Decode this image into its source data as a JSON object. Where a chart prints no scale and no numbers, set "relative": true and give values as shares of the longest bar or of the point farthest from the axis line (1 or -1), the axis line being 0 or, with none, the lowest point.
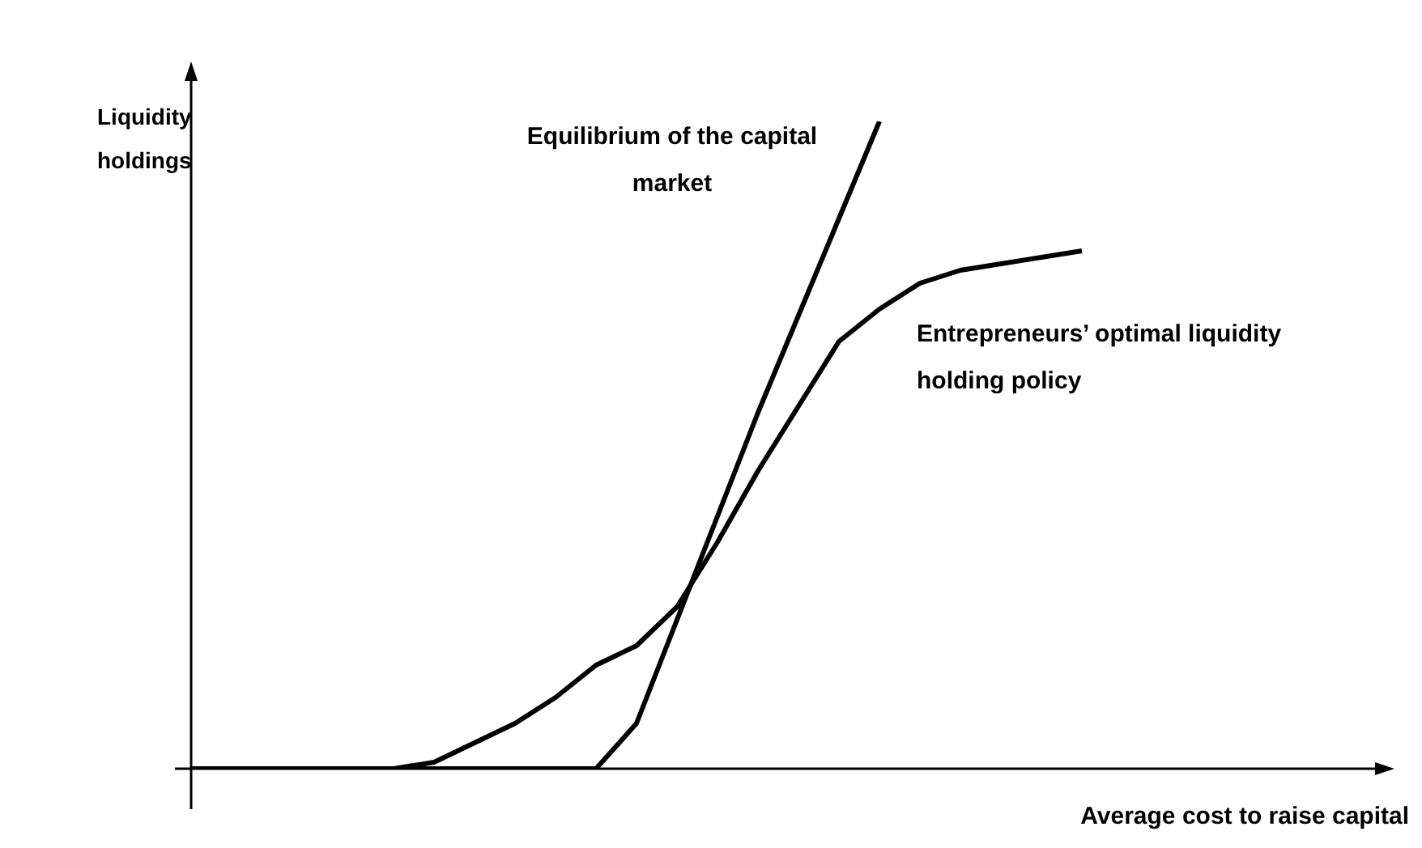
{
  "chart_data": {
    "type": "line",
    "relative": true,
    "xlabel": "Average cost to raise capital",
    "ylabel": "Liquidity holdings",
    "categories": [
      null,
      null,
      null,
      null,
      null,
      null,
      null,
      null,
      null,
      null,
      null,
      null,
      null,
      null,
      null,
      null,
      null,
      null,
      null,
      null,
      null,
      null,
      null,
      null,
      null,
      null,
      null,
      null,
      null,
      null
    ],
    "series": [
      {
        "name": "Equilibrium of the capital market",
        "color": "#000000",
        "values": [
          0,
          0,
          0,
          0,
          0,
          0,
          0,
          0,
          0,
          0,
          0,
          0.07,
          0.23,
          0.39,
          0.55,
          0.7,
          0.85,
          1,
          null,
          null,
          null,
          null,
          null,
          null,
          null,
          null,
          null,
          null,
          null,
          null
        ]
      },
      {
        "name": "Entrepreneurs’ optimal liquidity holding policy",
        "color": "#000000",
        "values": [
          0,
          0,
          0,
          0,
          0,
          0,
          0.01,
          0.04,
          0.07,
          0.11,
          0.16,
          0.19,
          0.25,
          0.35,
          0.46,
          0.56,
          0.66,
          0.71,
          0.75,
          0.77,
          0.78,
          0.79,
          0.8,
          null,
          null,
          null,
          null,
          null,
          null,
          null
        ]
      }
    ],
    "legend": false,
    "grid": false,
    "tick_labels": false,
    "marker": "none",
    "line_style": "solid"
  }
}
